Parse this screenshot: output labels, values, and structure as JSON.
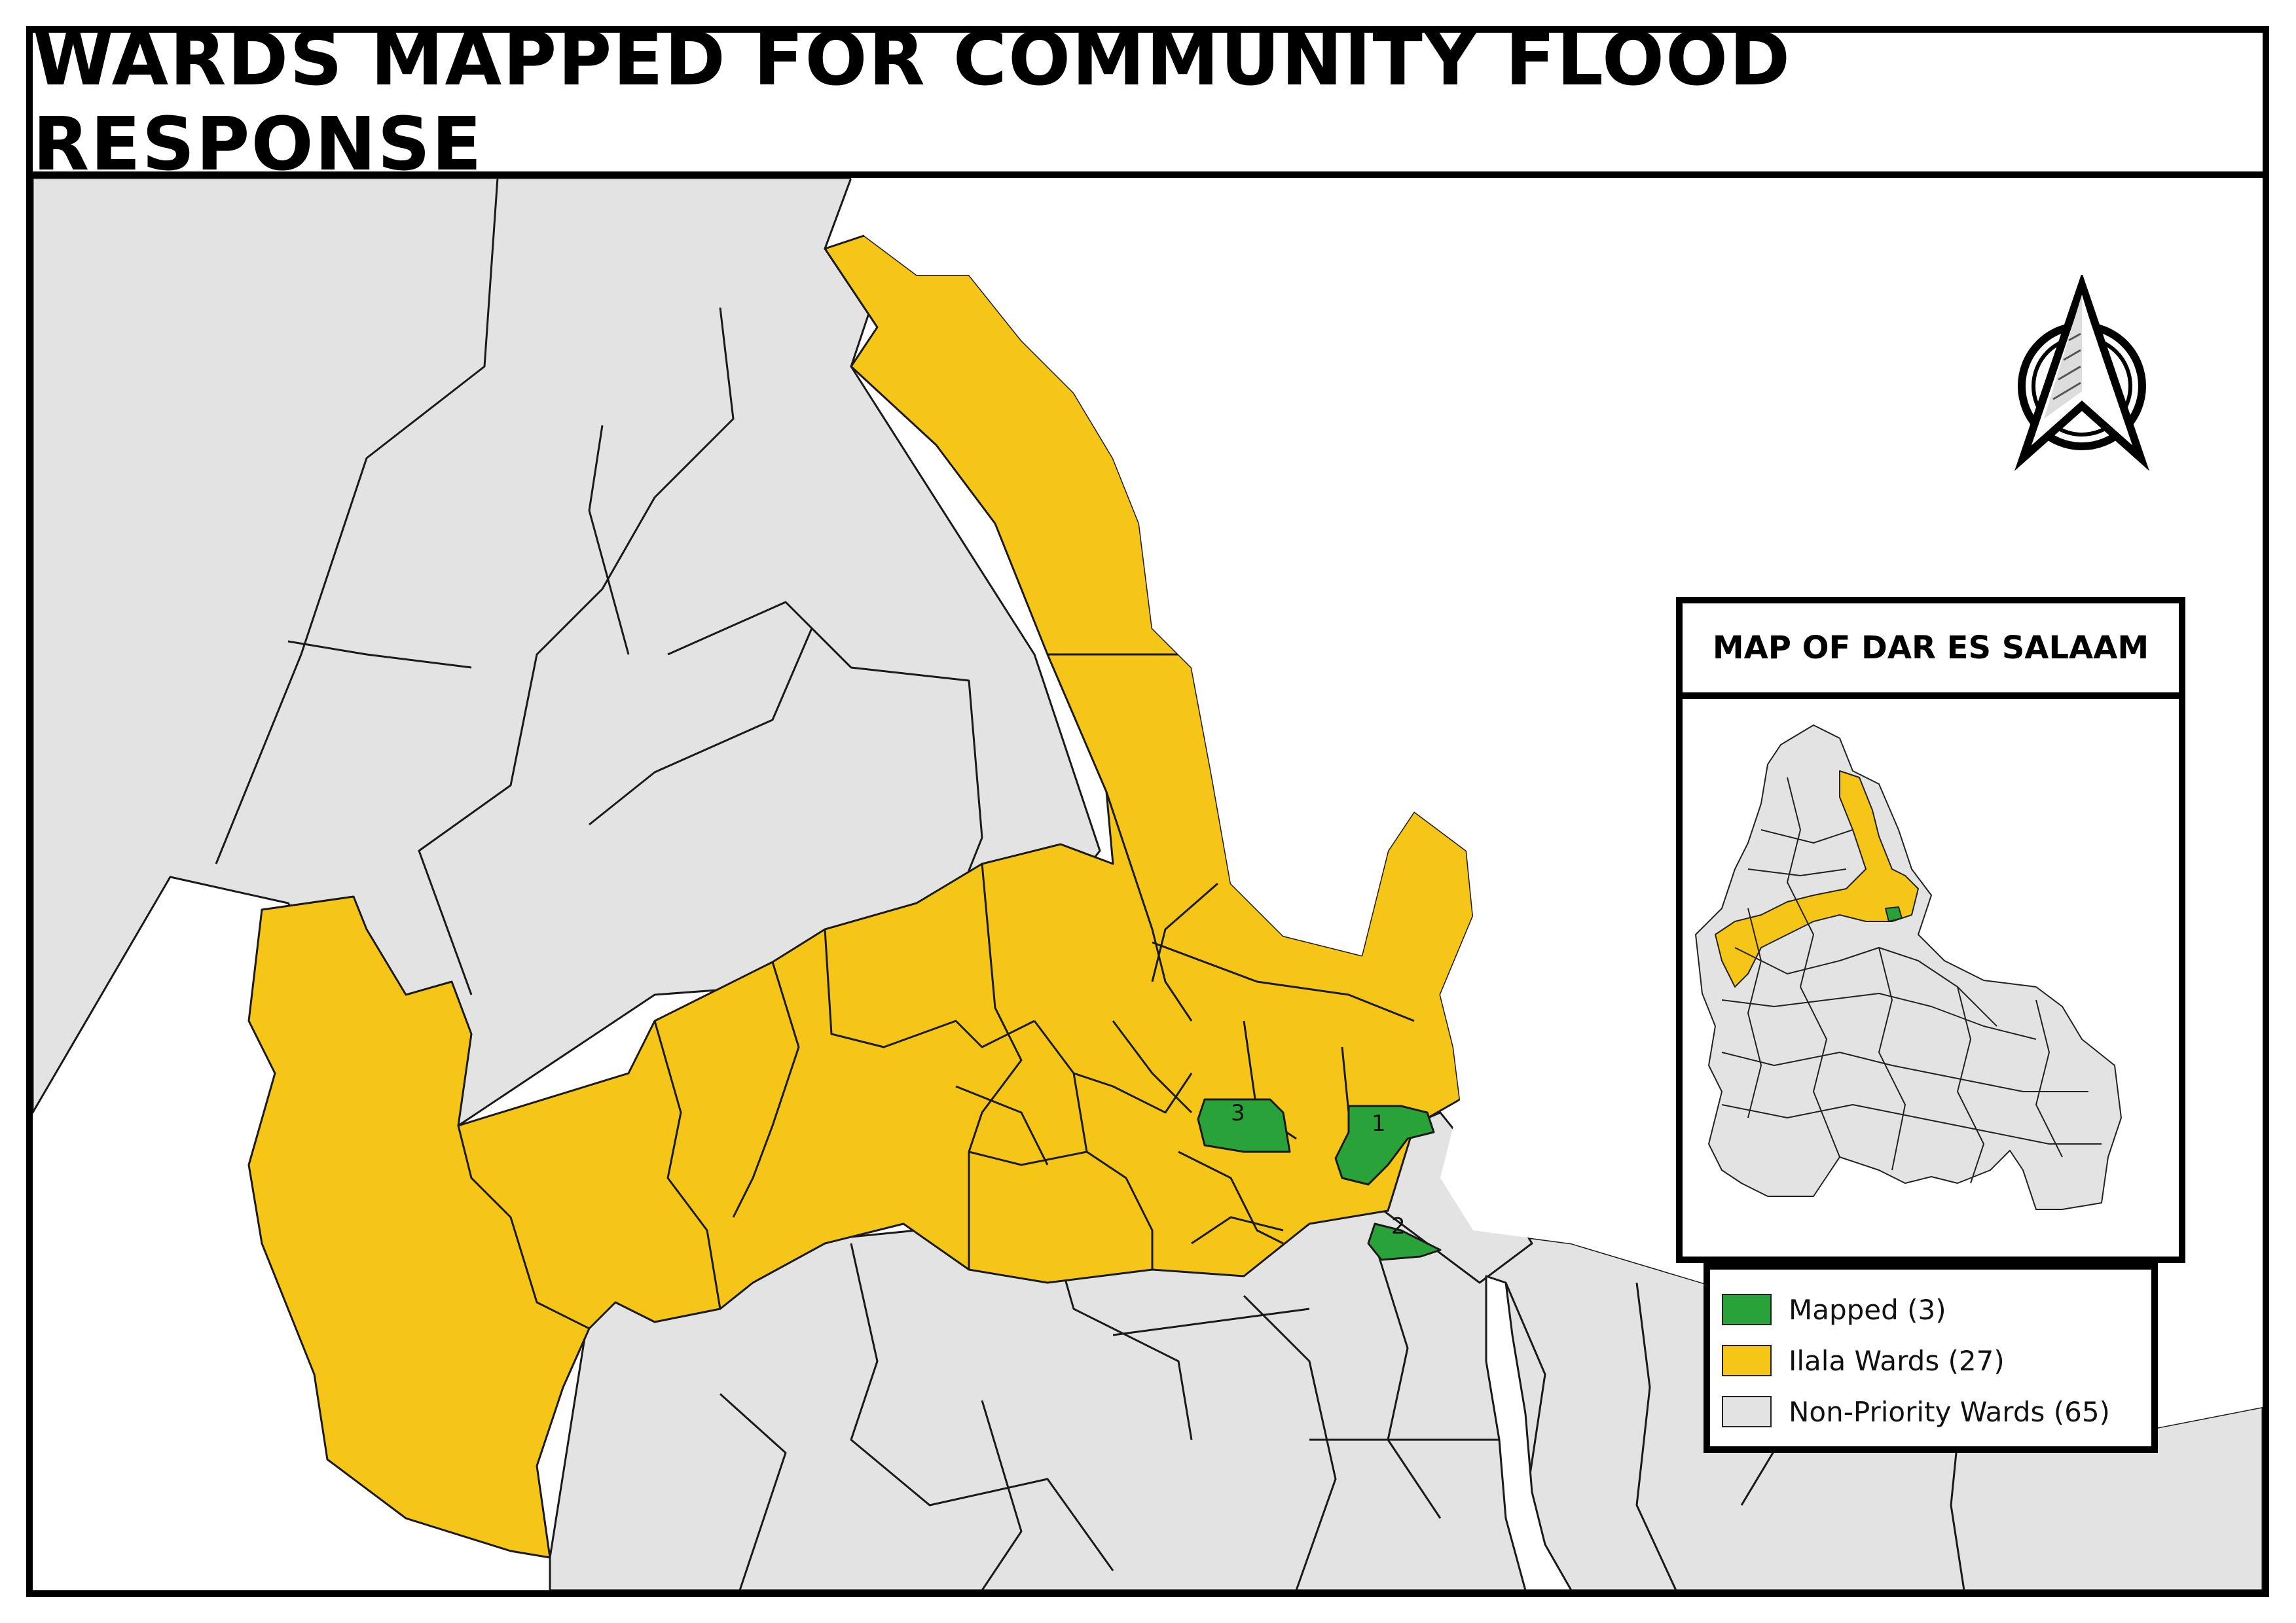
{
  "title": "WARDS MAPPED FOR COMMUNITY FLOOD RESPONSE",
  "inset": {
    "title": "MAP OF DAR ES SALAAM"
  },
  "legend": {
    "items": [
      {
        "label": "Mapped (3)",
        "color": "#2aa23a"
      },
      {
        "label": "Ilala Wards (27)",
        "color": "#f5c518"
      },
      {
        "label": "Non-Priority Wards (65)",
        "color": "#e3e3e3"
      }
    ]
  },
  "map": {
    "ward_labels": [
      "3",
      "1",
      "2"
    ],
    "colors": {
      "mapped": "#2aa23a",
      "ilala": "#f5c518",
      "non_priority": "#e3e3e3",
      "water": "#ffffff",
      "border": "#1a1a1a"
    }
  },
  "north_arrow": {
    "icon": "north-arrow-icon"
  }
}
